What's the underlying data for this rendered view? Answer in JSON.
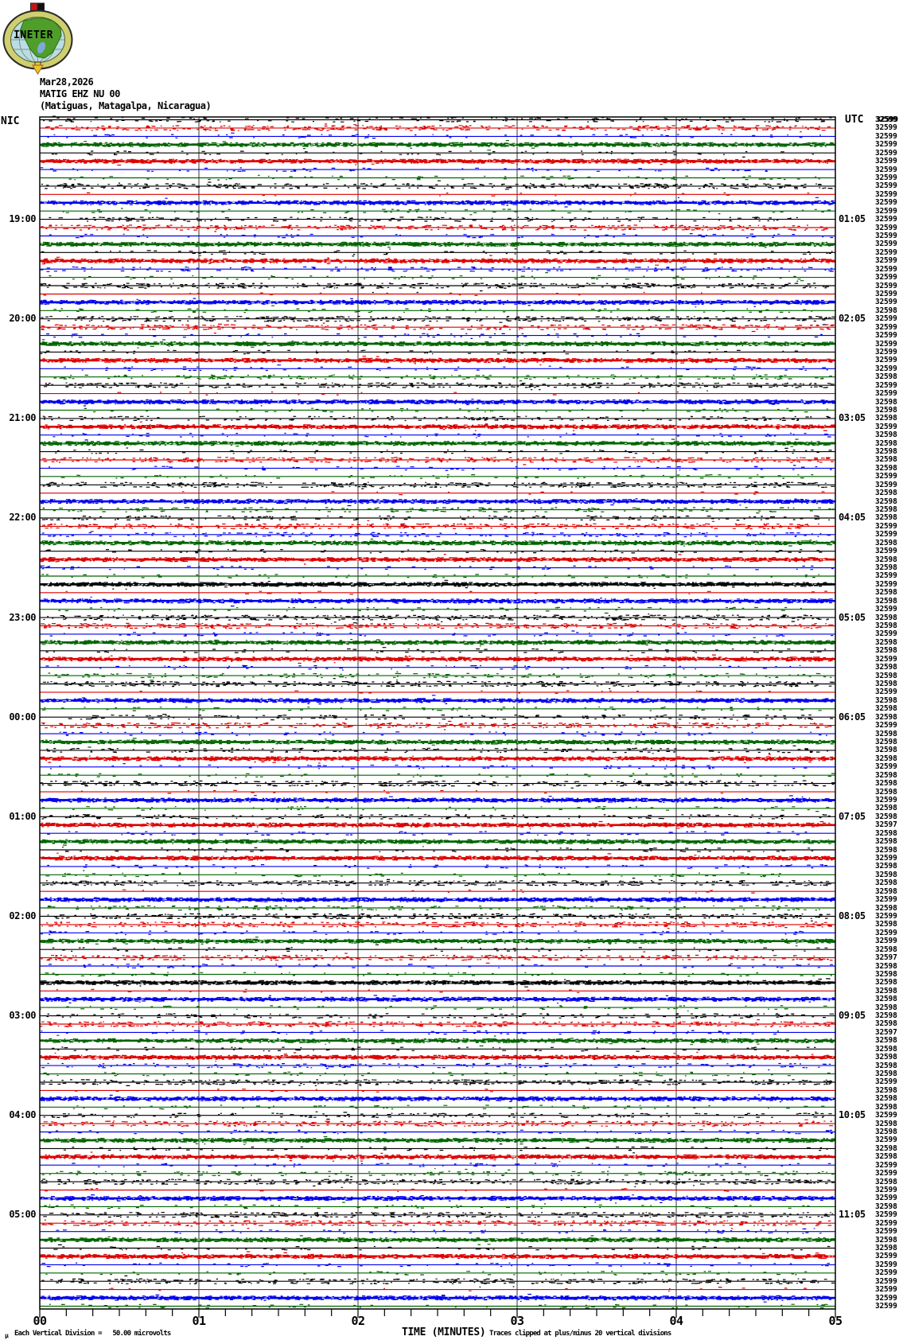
{
  "header": {
    "date": "Mar28,2026",
    "station": "MATIG EHZ NU 00",
    "location": "(Matiguas, Matagalpa, Nicaragua)"
  },
  "logo": {
    "text": "INETER"
  },
  "axes": {
    "left_timezone_label": "NIC",
    "right_timezone_label": "UTC",
    "x_title": "TIME (MINUTES)",
    "x_ticks": [
      "00",
      "01",
      "02",
      "03",
      "04",
      "05"
    ]
  },
  "footer": {
    "mu": "μ",
    "division_note": "Each Vertical Division =   50.00 microvolts",
    "clip_note": "Traces clipped at plus/minus 20 vertical divisions"
  },
  "chart_data": {
    "type": "line",
    "title": "MATIG EHZ NU 00 helicorder, Mar28,2026 (Matiguas, Matagalpa, Nicaragua)",
    "xlabel": "TIME (MINUTES)",
    "x_range_minutes": [
      0,
      5
    ],
    "minor_tick_seconds": 10,
    "minutes_per_trace": 5,
    "traces_per_hour": 12,
    "trace_count": 144,
    "grid_on": true,
    "grid_color": "#808080",
    "trace_color_cycle": [
      "#000000",
      "#dd0000",
      "#0000ee",
      "#006400"
    ],
    "left_hour_labels": [
      {
        "row": 12,
        "label": "19:00"
      },
      {
        "row": 24,
        "label": "20:00"
      },
      {
        "row": 36,
        "label": "21:00"
      },
      {
        "row": 48,
        "label": "22:00"
      },
      {
        "row": 60,
        "label": "23:00"
      },
      {
        "row": 72,
        "label": "00:00"
      },
      {
        "row": 84,
        "label": "01:00"
      },
      {
        "row": 96,
        "label": "02:00"
      },
      {
        "row": 108,
        "label": "03:00"
      },
      {
        "row": 120,
        "label": "04:00"
      },
      {
        "row": 132,
        "label": "05:00"
      }
    ],
    "right_hour_labels": [
      {
        "row": 12,
        "label": "01:05"
      },
      {
        "row": 24,
        "label": "02:05"
      },
      {
        "row": 36,
        "label": "03:05"
      },
      {
        "row": 48,
        "label": "04:05"
      },
      {
        "row": 60,
        "label": "05:05"
      },
      {
        "row": 72,
        "label": "06:05"
      },
      {
        "row": 84,
        "label": "07:05"
      },
      {
        "row": 96,
        "label": "08:05"
      },
      {
        "row": 108,
        "label": "09:05"
      },
      {
        "row": 120,
        "label": "10:05"
      },
      {
        "row": 132,
        "label": "11:05"
      }
    ],
    "row_values": [
      32599,
      32599,
      32599,
      32599,
      32599,
      32599,
      32599,
      32599,
      32599,
      32599,
      32599,
      32599,
      32599,
      32599,
      32599,
      32599,
      32599,
      32599,
      32599,
      32599,
      32599,
      32599,
      32599,
      32598,
      32599,
      32599,
      32599,
      32599,
      32599,
      32599,
      32599,
      32598,
      32599,
      32599,
      32598,
      32598,
      32598,
      32599,
      32598,
      32598,
      32598,
      32598,
      32598,
      32599,
      32599,
      32598,
      32598,
      32598,
      32598,
      32599,
      32599,
      32598,
      32599,
      32598,
      32598,
      32599,
      32599,
      32598,
      32598,
      32599,
      32598,
      32598,
      32599,
      32598,
      32598,
      32599,
      32598,
      32598,
      32598,
      32599,
      32598,
      32598,
      32598,
      32599,
      32598,
      32598,
      32598,
      32598,
      32599,
      32598,
      32598,
      32598,
      32599,
      32598,
      32598,
      32597,
      32598,
      32598,
      32598,
      32599,
      32598,
      32598,
      32598,
      32598,
      32599,
      32598,
      32599,
      32598,
      32599,
      32599,
      32598,
      32597,
      32598,
      32598,
      32598,
      32598,
      32598,
      32598,
      32598,
      32598,
      32597,
      32598,
      32598,
      32598,
      32598,
      32598,
      32599,
      32598,
      32598,
      32598,
      32599,
      32598,
      32598,
      32599,
      32598,
      32598,
      32599,
      32599,
      32598,
      32599,
      32599,
      32598,
      32599,
      32599,
      32599,
      32598,
      32598,
      32599,
      32599,
      32599,
      32599,
      32599,
      32599,
      32599
    ],
    "row_noise_levels": [
      2,
      3,
      1,
      4,
      1,
      4,
      1,
      1,
      3,
      0,
      4,
      1,
      2,
      3,
      1,
      4,
      1,
      4,
      2,
      1,
      3,
      0,
      4,
      1,
      3,
      3,
      1,
      4,
      1,
      4,
      1,
      2,
      3,
      0,
      4,
      1,
      2,
      4,
      1,
      4,
      1,
      3,
      1,
      1,
      3,
      0,
      4,
      2,
      2,
      3,
      2,
      4,
      1,
      4,
      1,
      1,
      4,
      0,
      4,
      1,
      3,
      3,
      1,
      4,
      1,
      4,
      1,
      2,
      3,
      0,
      4,
      1,
      2,
      3,
      1,
      4,
      2,
      4,
      1,
      1,
      3,
      0,
      4,
      1,
      2,
      4,
      1,
      4,
      1,
      4,
      1,
      1,
      3,
      0,
      4,
      2,
      3,
      3,
      1,
      4,
      1,
      3,
      1,
      1,
      4,
      0,
      4,
      1,
      2,
      3,
      1,
      4,
      1,
      4,
      2,
      1,
      3,
      0,
      4,
      1,
      2,
      3,
      1,
      4,
      1,
      4,
      1,
      2,
      3,
      0,
      4,
      1,
      3,
      3,
      1,
      4,
      1,
      4,
      1,
      1,
      3,
      0,
      4,
      1
    ]
  }
}
